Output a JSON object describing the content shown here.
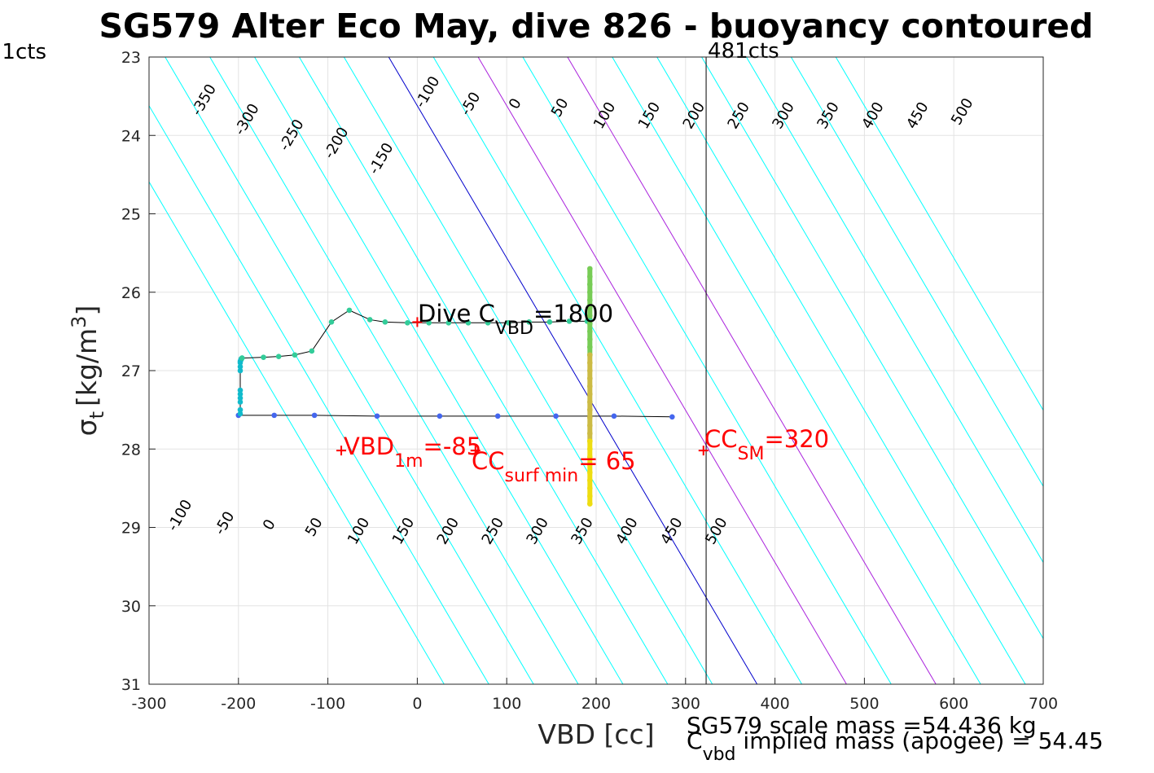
{
  "chart_data": {
    "type": "scatter",
    "title": "SG579 Alter Eco May, dive 826 - buoyancy contoured",
    "xlabel": "VBD [cc]",
    "ylabel": "σ",
    "ylabel_sub": "t",
    "ylabel_units": "[kg/m",
    "ylabel_sup": "3",
    "ylabel_close": "]",
    "xlim": [
      -300,
      700
    ],
    "ylim": [
      23,
      31
    ],
    "y_reversed": true,
    "grid": true,
    "x_ticks": [
      -300,
      -200,
      -100,
      0,
      100,
      200,
      300,
      400,
      500,
      600,
      700
    ],
    "x_tick_labels": [
      "-300",
      "-200",
      "-100",
      "0",
      "100",
      "200",
      "300",
      "400",
      "500",
      "600",
      "700"
    ],
    "y_ticks": [
      23,
      24,
      25,
      26,
      27,
      28,
      29,
      30,
      31
    ],
    "y_tick_labels": [
      "23",
      "24",
      "25",
      "26",
      "27",
      "28",
      "29",
      "30",
      "31"
    ],
    "contours": {
      "levels": [
        -350,
        -300,
        -250,
        -200,
        -150,
        -100,
        -50,
        0,
        50,
        100,
        150,
        200,
        250,
        300,
        350,
        400,
        450,
        500
      ],
      "labels": [
        "-350",
        "-300",
        "-250",
        "-200",
        "-150",
        "-100",
        "-50",
        "0",
        "50",
        "100",
        "150",
        "200",
        "250",
        "300",
        "350",
        "400",
        "450",
        "500"
      ],
      "x_at_top": [
        -382,
        -332,
        -282,
        -232,
        -182,
        -132,
        -82,
        -32,
        18,
        68,
        118,
        168,
        218,
        268,
        318,
        368,
        418,
        468
      ],
      "x_per_sigma": 51.5,
      "top_labels": [
        {
          "level": -350,
          "x": -238,
          "y": 23.55
        },
        {
          "level": -300,
          "x": -190,
          "y": 23.8
        },
        {
          "level": -250,
          "x": -140,
          "y": 24.0
        },
        {
          "level": -200,
          "x": -90,
          "y": 24.1
        },
        {
          "level": -150,
          "x": -40,
          "y": 24.3
        },
        {
          "level": -100,
          "x": 12,
          "y": 23.45
        },
        {
          "level": -50,
          "x": 60,
          "y": 23.6
        },
        {
          "level": 0,
          "x": 110,
          "y": 23.6
        },
        {
          "level": 50,
          "x": 160,
          "y": 23.65
        },
        {
          "level": 100,
          "x": 210,
          "y": 23.75
        },
        {
          "level": 150,
          "x": 260,
          "y": 23.75
        },
        {
          "level": 200,
          "x": 310,
          "y": 23.75
        },
        {
          "level": 250,
          "x": 360,
          "y": 23.75
        },
        {
          "level": 300,
          "x": 410,
          "y": 23.75
        },
        {
          "level": 350,
          "x": 460,
          "y": 23.75
        },
        {
          "level": 400,
          "x": 510,
          "y": 23.75
        },
        {
          "level": 450,
          "x": 560,
          "y": 23.75
        },
        {
          "level": 500,
          "x": 610,
          "y": 23.7
        }
      ],
      "bottom_labels": [
        {
          "level": -100,
          "x": -265,
          "y": 28.85
        },
        {
          "level": -50,
          "x": -215,
          "y": 28.95
        },
        {
          "level": 0,
          "x": -165,
          "y": 28.97
        },
        {
          "level": 50,
          "x": -115,
          "y": 29.0
        },
        {
          "level": 100,
          "x": -65,
          "y": 29.05
        },
        {
          "level": 150,
          "x": -15,
          "y": 29.05
        },
        {
          "level": 200,
          "x": 35,
          "y": 29.05
        },
        {
          "level": 250,
          "x": 85,
          "y": 29.05
        },
        {
          "level": 300,
          "x": 135,
          "y": 29.05
        },
        {
          "level": 350,
          "x": 185,
          "y": 29.05
        },
        {
          "level": 400,
          "x": 235,
          "y": 29.05
        },
        {
          "level": 450,
          "x": 285,
          "y": 29.05
        },
        {
          "level": 500,
          "x": 335,
          "y": 29.05
        }
      ],
      "colors": {
        "default": "#00ffff",
        "zero": "#0000cc",
        "highlight": "#aa22dd"
      },
      "highlight_levels": [
        100,
        200
      ]
    },
    "series": [
      {
        "x": [
          -200,
          -160,
          -115,
          -45,
          25,
          90,
          155,
          220,
          285
        ],
        "y": [
          27.57,
          27.57,
          27.57,
          27.58,
          27.58,
          27.58,
          27.58,
          27.58,
          27.59
        ],
        "color": "#4466ee"
      },
      {
        "x": [
          -198,
          -198,
          -198,
          -198,
          -198,
          -198,
          -198,
          -198,
          -198,
          -198,
          -197,
          -197,
          -196
        ],
        "y": [
          27.55,
          27.5,
          27.4,
          27.35,
          27.3,
          27.25,
          27.0,
          26.95,
          26.9,
          26.88,
          26.86,
          26.85,
          26.84
        ],
        "color": "#11bbcc"
      },
      {
        "x": [
          -196,
          -172,
          -155,
          -137,
          -118,
          -96,
          -76,
          -53,
          -36,
          -11,
          13,
          35,
          57,
          79,
          102,
          125,
          148,
          170,
          190,
          193
        ],
        "y": [
          26.84,
          26.83,
          26.82,
          26.8,
          26.75,
          26.38,
          26.23,
          26.35,
          26.38,
          26.39,
          26.39,
          26.39,
          26.39,
          26.39,
          26.39,
          26.38,
          26.38,
          26.37,
          26.37,
          26.36
        ],
        "color": "#33cc99"
      },
      {
        "x": [
          193,
          193,
          193,
          193,
          193,
          193,
          193,
          193,
          193,
          193,
          193,
          193
        ],
        "y": [
          25.7,
          25.8,
          25.9,
          26.0,
          26.1,
          26.2,
          26.3,
          26.4,
          26.5,
          26.6,
          26.7,
          26.8
        ],
        "color": "#77cc55"
      },
      {
        "x": [
          193,
          193,
          193,
          193,
          193,
          193,
          193,
          193,
          193,
          193,
          193,
          193
        ],
        "y": [
          26.8,
          26.9,
          27.0,
          27.1,
          27.2,
          27.3,
          27.4,
          27.5,
          27.6,
          27.7,
          27.8,
          27.9
        ],
        "color": "#ccbb44"
      },
      {
        "x": [
          193,
          193,
          193,
          193,
          193,
          193,
          193,
          193,
          193
        ],
        "y": [
          27.9,
          28.0,
          28.1,
          28.2,
          28.3,
          28.4,
          28.5,
          28.6,
          28.7
        ],
        "color": "#eedd11"
      }
    ],
    "vertical_line": {
      "x": 323,
      "label": "481cts"
    },
    "left_edge_label": "1cts",
    "markers": [
      {
        "x": 0,
        "y": 26.38,
        "color": "#ff0000"
      },
      {
        "x": -85,
        "y": 28.02,
        "color": "#ff0000"
      },
      {
        "x": 65,
        "y": 28.02,
        "color": "#ff0000"
      },
      {
        "x": 320,
        "y": 28.02,
        "color": "#ff0000"
      }
    ],
    "annotations": {
      "dive_cvbd": {
        "main": "Dive C",
        "sub": "VBD",
        "value": "=1800"
      },
      "vbd_1m": {
        "main": "VBD",
        "sub": "1m",
        "value": "=-85"
      },
      "cc_surf_min": {
        "main": "CC",
        "sub": "surf min",
        "value": "= 65"
      },
      "cc_sm": {
        "main": "CC",
        "sub": "SM",
        "value": "=320"
      },
      "scale_mass": "SG579 scale mass =54.436 kg",
      "implied_mass": {
        "main": "C",
        "sub": "vbd",
        "value": " implied mass (apogee) = 54.45"
      }
    }
  }
}
